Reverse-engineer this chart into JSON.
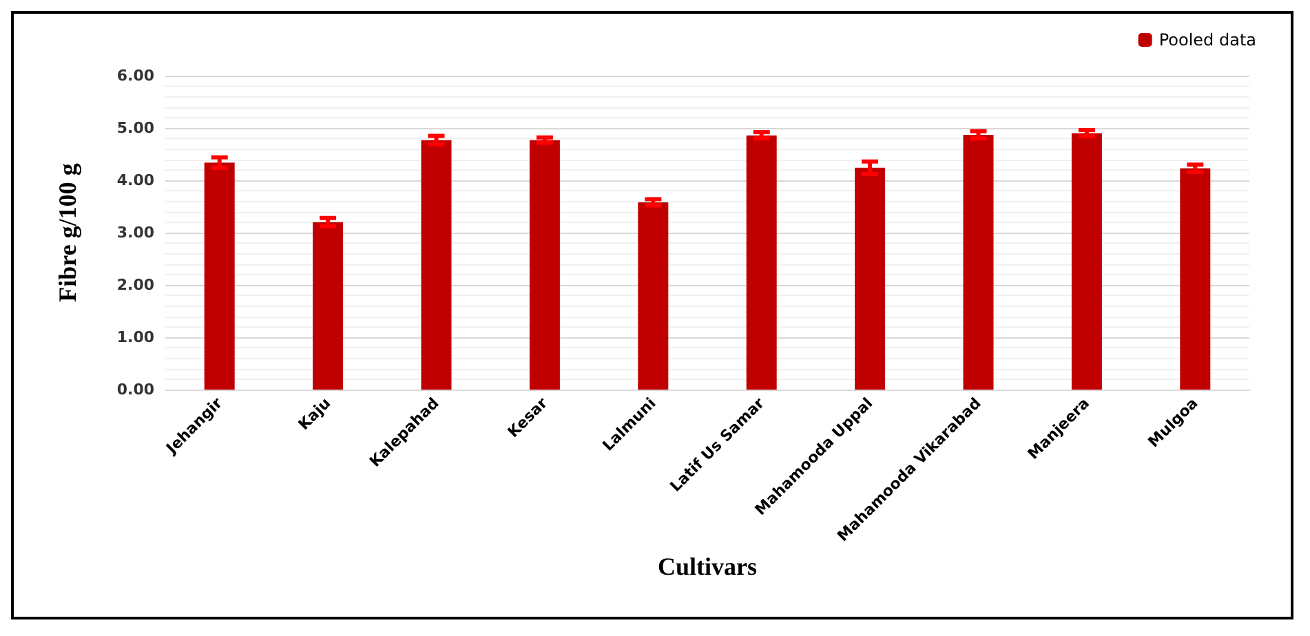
{
  "chart_data": {
    "type": "bar",
    "xlabel": "Cultivars",
    "ylabel": "Fibre g/100 g",
    "categories": [
      "Jehangir",
      "Kaju",
      "Kalepahad",
      "Kesar",
      "Lalmuni",
      "Latif Us Samar",
      "Mahamooda Uppal",
      "Mahamooda Vikarabad",
      "Manjeera",
      "Mulgoa"
    ],
    "series": [
      {
        "name": "Pooled data",
        "color": "#c00000",
        "values": [
          4.34,
          3.2,
          4.77,
          4.77,
          3.58,
          4.86,
          4.24,
          4.87,
          4.9,
          4.23
        ],
        "errors": [
          0.1,
          0.08,
          0.08,
          0.05,
          0.06,
          0.06,
          0.12,
          0.07,
          0.06,
          0.07
        ]
      }
    ],
    "ylim": [
      0,
      6
    ],
    "yticks": [
      {
        "value": 0,
        "label": "0.00"
      },
      {
        "value": 1,
        "label": "1.00"
      },
      {
        "value": 2,
        "label": "2.00"
      },
      {
        "value": 3,
        "label": "3.00"
      },
      {
        "value": 4,
        "label": "4.00"
      },
      {
        "value": 5,
        "label": "5.00"
      },
      {
        "value": 6,
        "label": "6.00"
      }
    ],
    "grid": "y",
    "legend": "top right"
  }
}
